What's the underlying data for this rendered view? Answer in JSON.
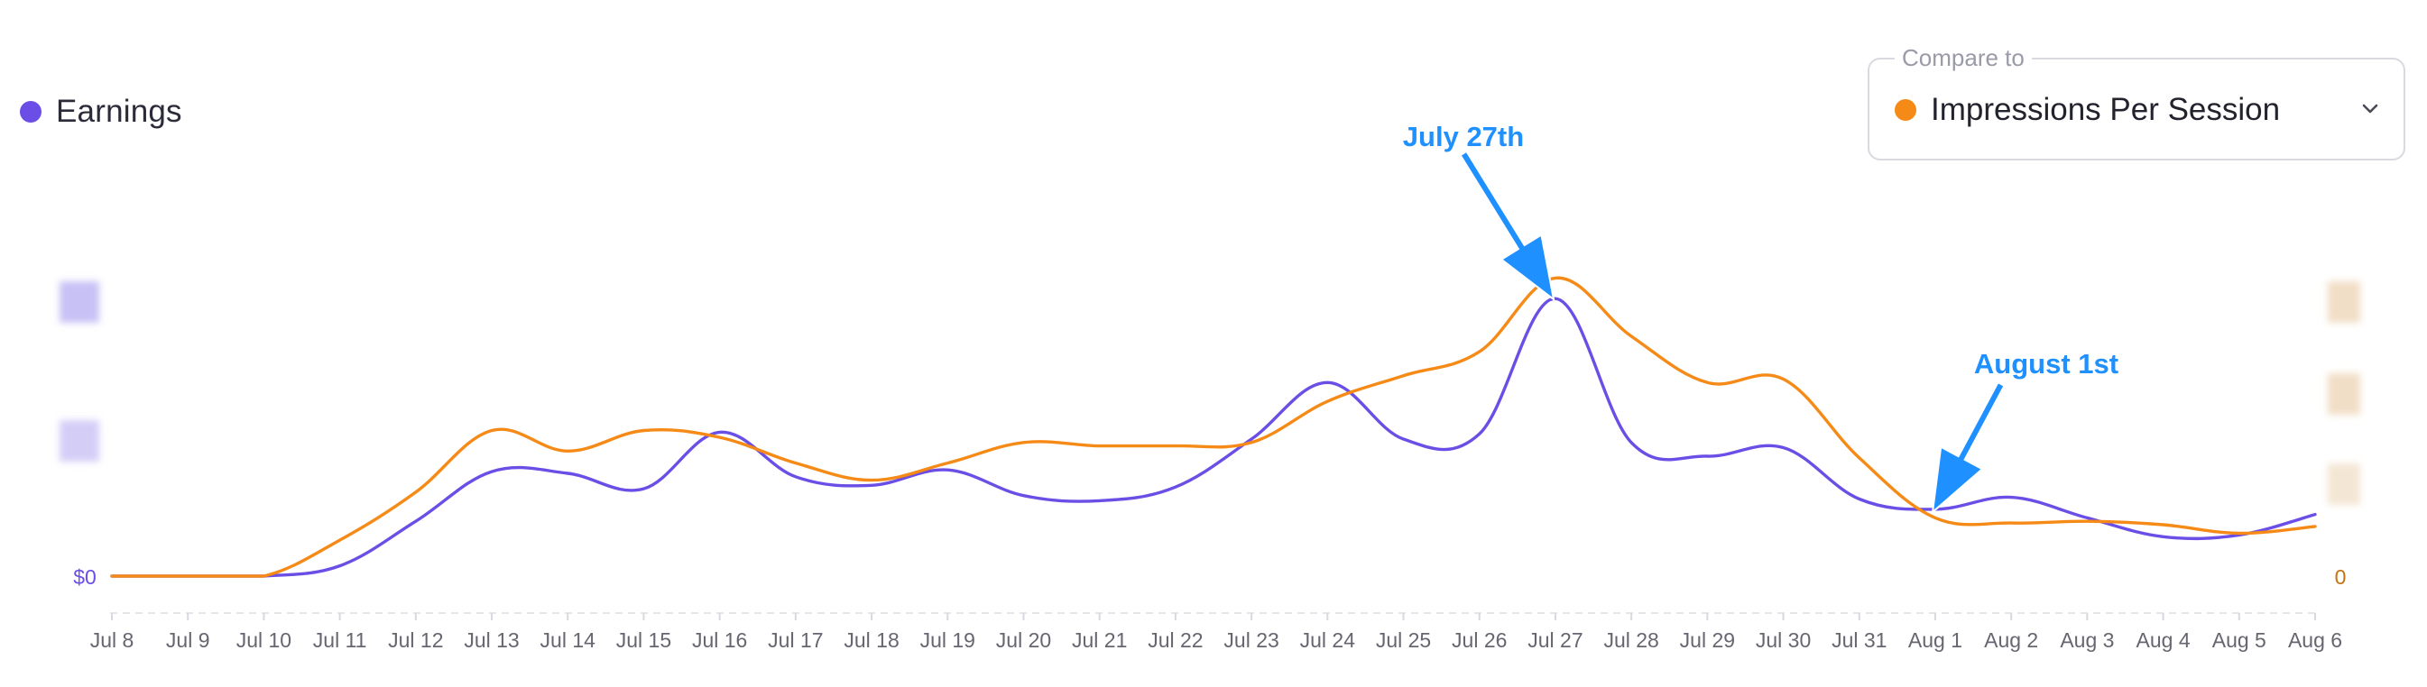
{
  "legend": {
    "earnings_label": "Earnings",
    "earnings_color": "#6A4EE6"
  },
  "compare": {
    "caption": "Compare to",
    "value": "Impressions Per Session",
    "color": "#F68A17",
    "chevron_icon": "chevron-down-icon"
  },
  "chart_data": {
    "type": "line",
    "x": [
      "Jul 8",
      "Jul 9",
      "Jul 10",
      "Jul 11",
      "Jul 12",
      "Jul 13",
      "Jul 14",
      "Jul 15",
      "Jul 16",
      "Jul 17",
      "Jul 18",
      "Jul 19",
      "Jul 20",
      "Jul 21",
      "Jul 22",
      "Jul 23",
      "Jul 24",
      "Jul 25",
      "Jul 26",
      "Jul 27",
      "Jul 28",
      "Jul 29",
      "Jul 30",
      "Jul 31",
      "Aug 1",
      "Aug 2",
      "Aug 3",
      "Aug 4",
      "Aug 5",
      "Aug 6"
    ],
    "series": [
      {
        "name": "Earnings",
        "axis": "left",
        "color": "#6A4EE6",
        "values": [
          0,
          0,
          0,
          0.06,
          0.32,
          0.61,
          0.6,
          0.51,
          0.84,
          0.58,
          0.53,
          0.62,
          0.47,
          0.44,
          0.52,
          0.8,
          1.13,
          0.8,
          0.83,
          1.62,
          0.78,
          0.7,
          0.75,
          0.45,
          0.39,
          0.46,
          0.34,
          0.23,
          0.24,
          0.36
        ],
        "sampled_every": 1
      },
      {
        "name": "Impressions Per Session",
        "axis": "right",
        "color": "#F68A17",
        "values": [
          0,
          0,
          0,
          0.21,
          0.49,
          0.85,
          0.73,
          0.85,
          0.81,
          0.66,
          0.56,
          0.66,
          0.78,
          0.76,
          0.76,
          0.78,
          1.02,
          1.17,
          1.31,
          1.74,
          1.4,
          1.13,
          1.15,
          0.69,
          0.34,
          0.31,
          0.32,
          0.3,
          0.25,
          0.29
        ],
        "sampled_every": 1
      }
    ],
    "y_left": {
      "tick_labels": [
        "$0"
      ],
      "color": "#6A4EE6"
    },
    "y_right": {
      "tick_labels": [
        "0"
      ],
      "color": "#C9700F"
    },
    "ylim": [
      0,
      2.0
    ],
    "grid": false,
    "legend_placement": "top-left",
    "annotations": [
      {
        "text": "July 27th",
        "x": "Jul 27",
        "color": "#1E90FF"
      },
      {
        "text": "August 1st",
        "x": "Aug 1",
        "color": "#1E90FF"
      }
    ]
  }
}
